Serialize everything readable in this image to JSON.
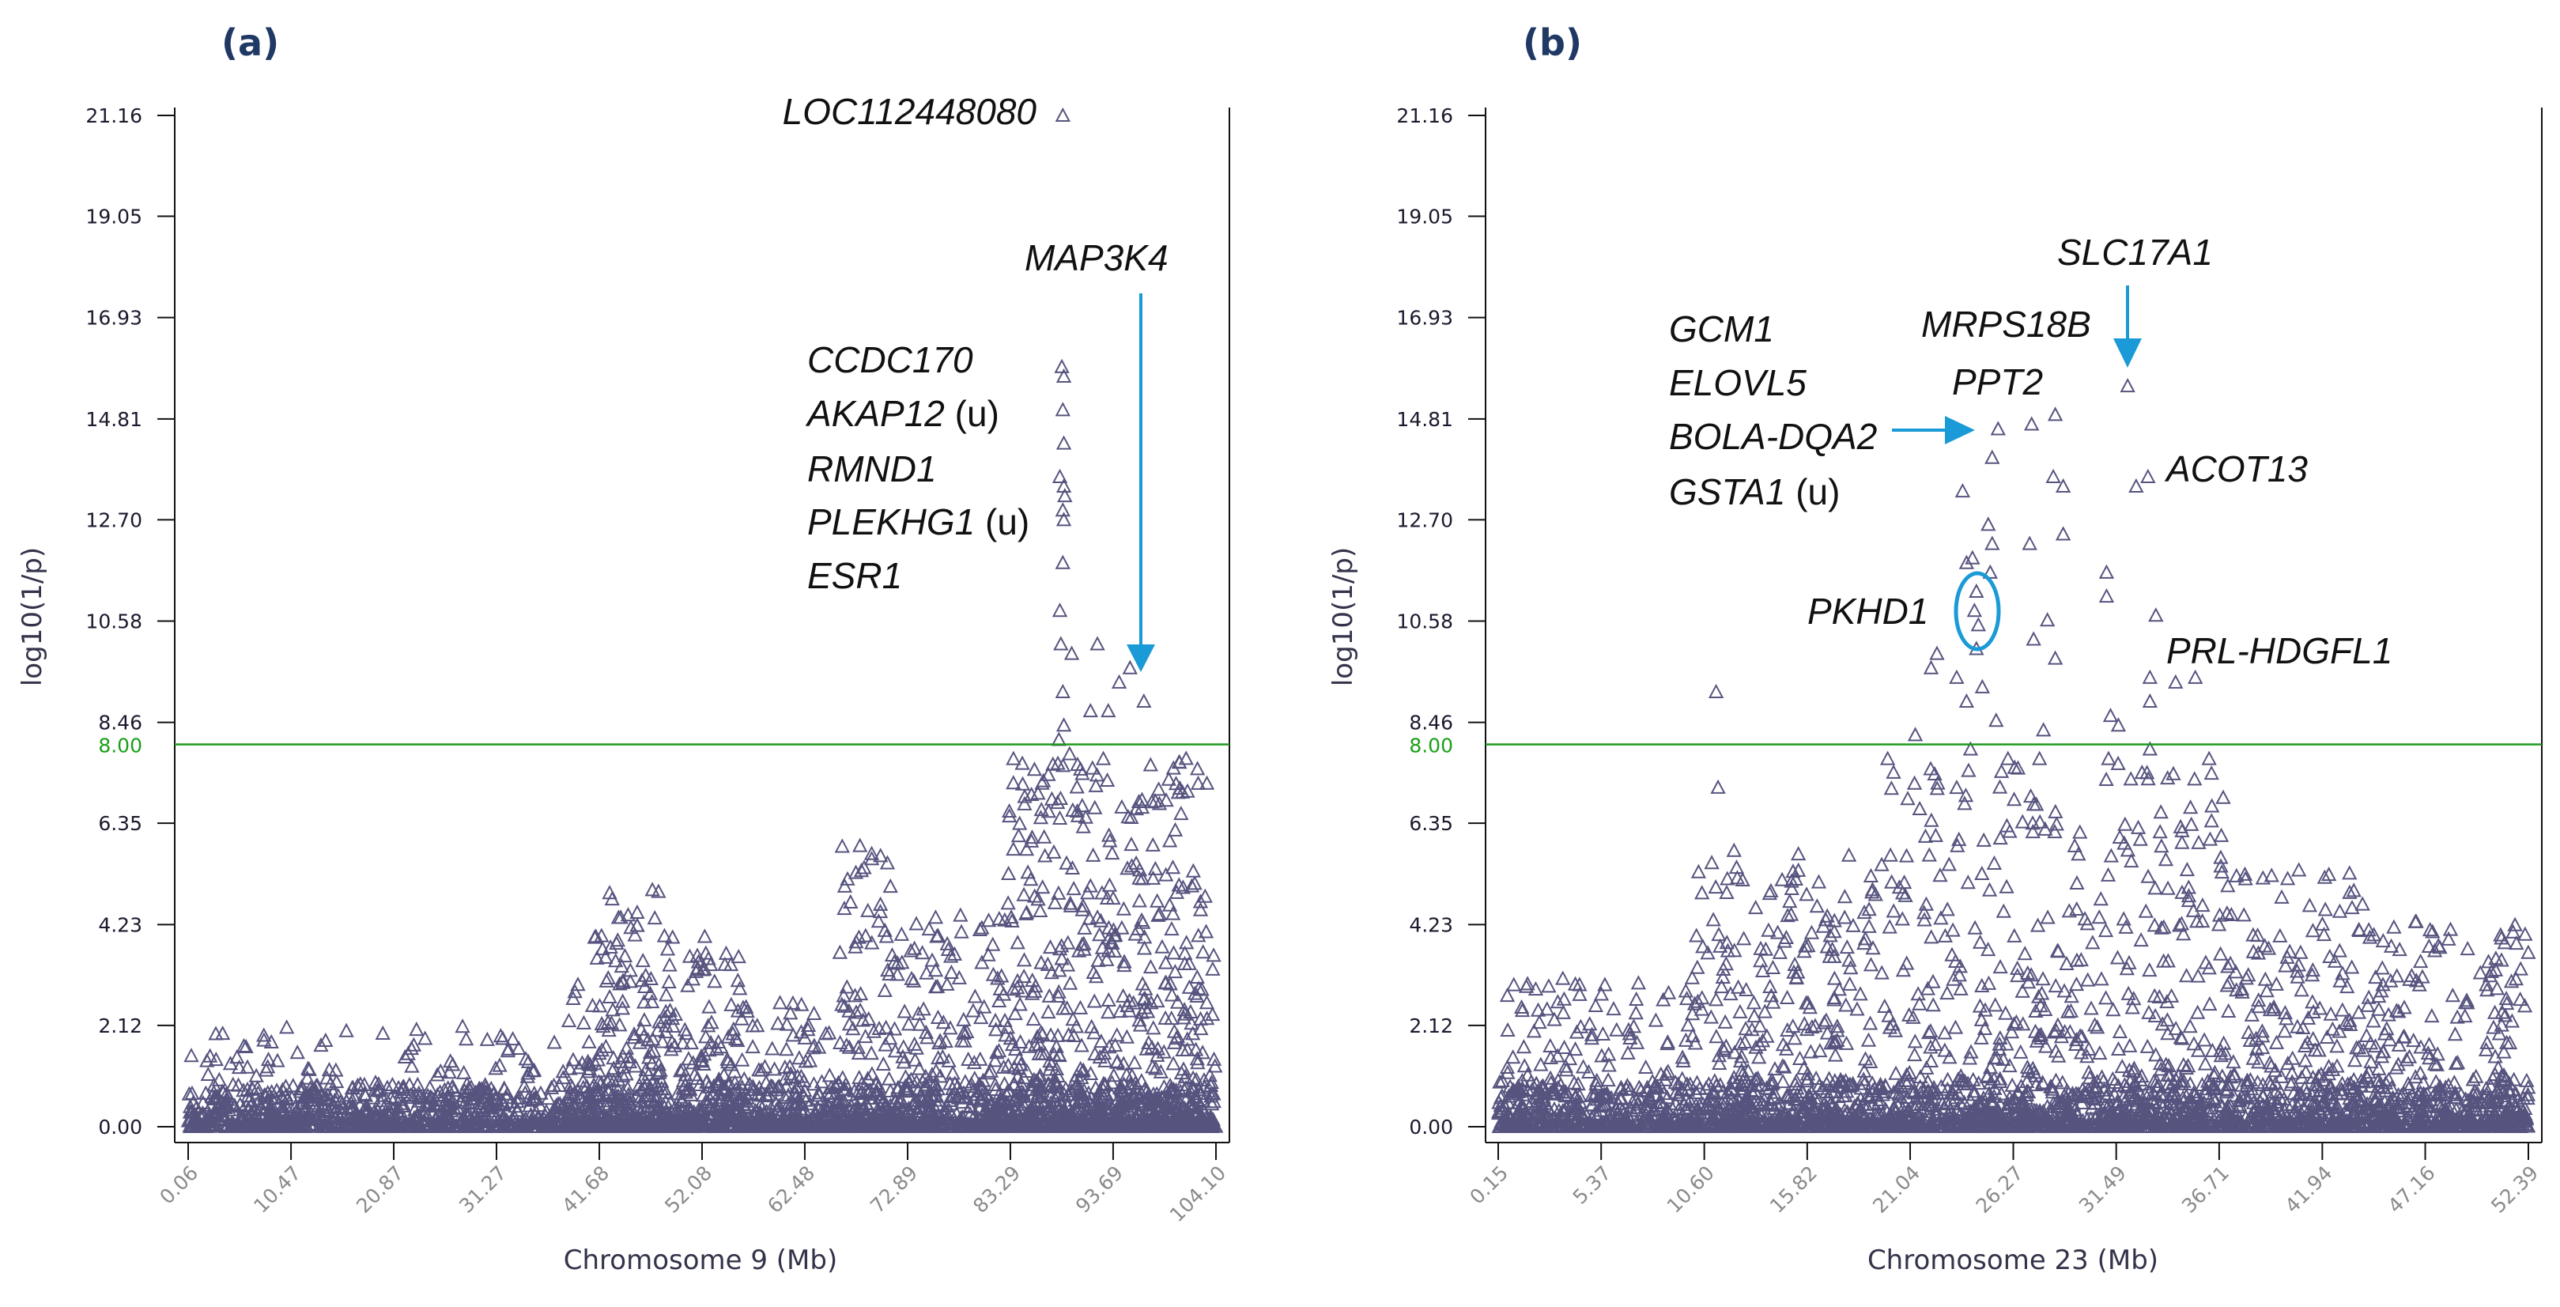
{
  "chart_data": [
    {
      "id": "a",
      "type": "scatter",
      "panel_label": "(a)",
      "xlabel": "Chromosome 9 (Mb)",
      "ylabel": "log10(1/p)",
      "xlim": [
        0.06,
        104.1
      ],
      "ylim": [
        0.0,
        21.16
      ],
      "x_ticks": [
        "0.06",
        "10.47",
        "20.87",
        "31.27",
        "41.68",
        "52.08",
        "62.48",
        "72.89",
        "83.29",
        "93.69",
        "104.10"
      ],
      "y_ticks": [
        "0.00",
        "2.12",
        "4.23",
        "6.35",
        "8.46",
        "10.58",
        "12.70",
        "14.81",
        "16.93",
        "19.05",
        "21.16"
      ],
      "threshold": {
        "value": 8.0,
        "label": "8.00",
        "color": "#1a9a1a"
      },
      "marker": "open-triangle",
      "marker_color": "#56547f",
      "notable_points": [
        [
          88.6,
          21.16
        ],
        [
          88.5,
          15.9
        ],
        [
          88.7,
          15.7
        ],
        [
          88.6,
          15.0
        ],
        [
          88.7,
          14.3
        ],
        [
          88.3,
          13.6
        ],
        [
          88.7,
          13.4
        ],
        [
          88.8,
          13.2
        ],
        [
          88.6,
          12.9
        ],
        [
          88.7,
          12.7
        ],
        [
          88.6,
          11.8
        ],
        [
          88.3,
          10.8
        ],
        [
          88.4,
          10.1
        ],
        [
          89.5,
          9.9
        ],
        [
          92.1,
          10.1
        ],
        [
          88.6,
          9.1
        ],
        [
          95.4,
          9.6
        ],
        [
          94.3,
          9.3
        ],
        [
          96.8,
          8.9
        ],
        [
          91.4,
          8.7
        ],
        [
          93.2,
          8.7
        ],
        [
          88.7,
          8.4
        ],
        [
          88.2,
          8.1
        ],
        [
          83.6,
          7.7
        ],
        [
          84.5,
          7.6
        ],
        [
          88.1,
          7.6
        ],
        [
          91.6,
          7.5
        ],
        [
          92.7,
          7.7
        ],
        [
          99.8,
          7.5
        ],
        [
          96.3,
          6.8
        ]
      ],
      "background_regions": [
        {
          "from": 0.06,
          "to": 104.1,
          "max": 0.9,
          "count": 1800
        },
        {
          "from": 0.06,
          "to": 38,
          "max": 2.1,
          "count": 260
        },
        {
          "from": 38,
          "to": 41,
          "max": 3.0,
          "count": 60
        },
        {
          "from": 41,
          "to": 48,
          "max": 5.1,
          "count": 200
        },
        {
          "from": 48,
          "to": 56,
          "max": 4.0,
          "count": 170
        },
        {
          "from": 56,
          "to": 66,
          "max": 2.6,
          "count": 130
        },
        {
          "from": 66,
          "to": 72,
          "max": 5.9,
          "count": 140
        },
        {
          "from": 72,
          "to": 83,
          "max": 4.5,
          "count": 220
        },
        {
          "from": 83,
          "to": 104.1,
          "max": 7.8,
          "count": 700
        }
      ],
      "annotations": {
        "loc": "LOC112448080",
        "map3k4": "MAP3K4",
        "ccdc170": "CCDC170",
        "akap12": "AKAP12",
        "akap12_tag": " (u)",
        "rmnd1": "RMND1",
        "plekhg1": "PLEKHG1",
        "plekhg1_tag": " (u)",
        "esr1": "ESR1"
      },
      "arrow_color": "#1a9ad6"
    },
    {
      "id": "b",
      "type": "scatter",
      "panel_label": "(b)",
      "xlabel": "Chromosome 23 (Mb)",
      "ylabel": "log10(1/p)",
      "xlim": [
        0.15,
        52.39
      ],
      "ylim": [
        0.0,
        21.16
      ],
      "x_ticks": [
        "0.15",
        "5.37",
        "10.60",
        "15.82",
        "21.04",
        "26.27",
        "31.49",
        "36.71",
        "41.94",
        "47.16",
        "52.39"
      ],
      "y_ticks": [
        "0.00",
        "2.12",
        "4.23",
        "6.35",
        "8.46",
        "10.58",
        "12.70",
        "14.81",
        "16.93",
        "19.05",
        "21.16"
      ],
      "threshold": {
        "value": 8.0,
        "label": "8.00",
        "color": "#1a9a1a"
      },
      "marker": "open-triangle",
      "marker_color": "#56547f",
      "notable_points": [
        [
          32.07,
          15.5
        ],
        [
          25.5,
          14.6
        ],
        [
          27.2,
          14.7
        ],
        [
          28.4,
          14.9
        ],
        [
          25.2,
          14.0
        ],
        [
          28.3,
          13.6
        ],
        [
          28.8,
          13.4
        ],
        [
          23.7,
          13.3
        ],
        [
          32.5,
          13.4
        ],
        [
          33.1,
          13.6
        ],
        [
          25.0,
          12.6
        ],
        [
          28.8,
          12.4
        ],
        [
          27.1,
          12.2
        ],
        [
          25.2,
          12.2
        ],
        [
          23.9,
          11.8
        ],
        [
          24.2,
          11.9
        ],
        [
          31.0,
          11.6
        ],
        [
          31.0,
          11.1
        ],
        [
          25.1,
          11.6
        ],
        [
          24.4,
          11.2
        ],
        [
          24.3,
          10.8
        ],
        [
          24.5,
          10.5
        ],
        [
          33.5,
          10.7
        ],
        [
          28.0,
          10.6
        ],
        [
          24.4,
          10.0
        ],
        [
          27.3,
          10.2
        ],
        [
          22.4,
          9.9
        ],
        [
          22.1,
          9.6
        ],
        [
          28.4,
          9.8
        ],
        [
          33.2,
          9.4
        ],
        [
          34.5,
          9.3
        ],
        [
          35.5,
          9.4
        ],
        [
          23.4,
          9.4
        ],
        [
          24.7,
          9.2
        ],
        [
          23.9,
          8.9
        ],
        [
          33.2,
          8.9
        ],
        [
          31.2,
          8.6
        ],
        [
          31.6,
          8.4
        ],
        [
          25.4,
          8.5
        ],
        [
          27.8,
          8.3
        ],
        [
          21.3,
          8.2
        ],
        [
          11.2,
          9.1
        ],
        [
          24.1,
          7.9
        ],
        [
          33.2,
          7.9
        ],
        [
          11.3,
          7.1
        ],
        [
          19.9,
          7.7
        ],
        [
          26.0,
          7.7
        ],
        [
          27.6,
          7.7
        ],
        [
          31.1,
          7.7
        ],
        [
          36.2,
          7.7
        ]
      ],
      "background_regions": [
        {
          "from": 0.15,
          "to": 52.39,
          "max": 1.0,
          "count": 1700
        },
        {
          "from": 0.15,
          "to": 10,
          "max": 3.2,
          "count": 220
        },
        {
          "from": 10,
          "to": 20,
          "max": 5.8,
          "count": 380
        },
        {
          "from": 20,
          "to": 37,
          "max": 7.6,
          "count": 620
        },
        {
          "from": 37,
          "to": 44,
          "max": 5.4,
          "count": 260
        },
        {
          "from": 44,
          "to": 52.39,
          "max": 4.3,
          "count": 280
        }
      ],
      "annotations": {
        "slc17a1": "SLC17A1",
        "mrps18b": "MRPS18B",
        "ppt2": "PPT2",
        "gcm1": "GCM1",
        "elovl5": "ELOVL5",
        "bola": "BOLA-DQA2",
        "gsta1": "GSTA1",
        "gsta1_tag": " (u)",
        "acot13": "ACOT13",
        "pkhd1": "PKHD1",
        "prl": "PRL-HDGFL1"
      },
      "arrow_color": "#1a9ad6"
    }
  ]
}
